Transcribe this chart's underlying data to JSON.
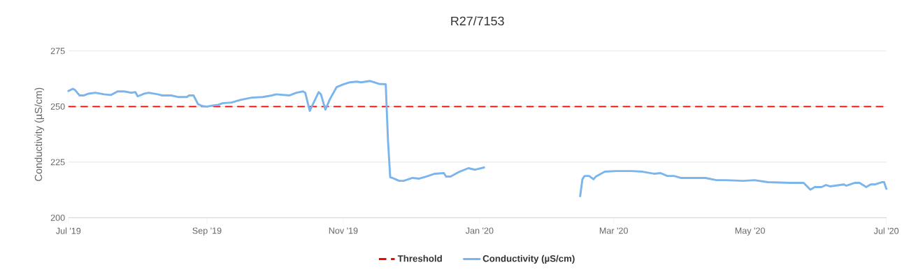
{
  "chart_data": {
    "type": "line",
    "title": "R27/7153",
    "ylabel": "Conductivity (µS/cm)",
    "xlim": [
      "2019-07-01",
      "2020-07-01"
    ],
    "xticks": [
      {
        "value": "2019-07-01",
        "label": "Jul '19"
      },
      {
        "value": "2019-09-01",
        "label": "Sep '19"
      },
      {
        "value": "2019-11-01",
        "label": "Nov '19"
      },
      {
        "value": "2020-01-01",
        "label": "Jan '20"
      },
      {
        "value": "2020-03-01",
        "label": "Mar '20"
      },
      {
        "value": "2020-05-01",
        "label": "May '20"
      },
      {
        "value": "2020-07-01",
        "label": "Jul '20"
      }
    ],
    "ylim": [
      200,
      275
    ],
    "yticks": [
      200,
      225,
      250,
      275
    ],
    "grid": "y",
    "legend": "bottom",
    "marker": "none",
    "ref_lines": [
      {
        "axis": "y",
        "value": 250,
        "label": "Threshold",
        "color": "#ff0000",
        "line_style": "dashed"
      }
    ],
    "series": [
      {
        "name": "Conductivity (µS/cm)",
        "color": "#7cb5ec",
        "line_style": "solid",
        "x": [
          "2019-07-01",
          "2019-07-03",
          "2019-07-04",
          "2019-07-06",
          "2019-07-08",
          "2019-07-10",
          "2019-07-13",
          "2019-07-17",
          "2019-07-20",
          "2019-07-23",
          "2019-07-26",
          "2019-07-29",
          "2019-07-31",
          "2019-08-01",
          "2019-08-04",
          "2019-08-06",
          "2019-08-10",
          "2019-08-12",
          "2019-08-16",
          "2019-08-19",
          "2019-08-23",
          "2019-08-24",
          "2019-08-26",
          "2019-08-28",
          "2019-08-30",
          "2019-09-01",
          "2019-09-04",
          "2019-09-06",
          "2019-09-08",
          "2019-09-12",
          "2019-09-16",
          "2019-09-21",
          "2019-09-26",
          "2019-09-30",
          "2019-10-02",
          "2019-10-08",
          "2019-10-11",
          "2019-10-14",
          "2019-10-15",
          "2019-10-17",
          "2019-10-21",
          "2019-10-22",
          "2019-10-24",
          "2019-10-26",
          "2019-10-29",
          "2019-11-01",
          "2019-11-04",
          "2019-11-07",
          "2019-11-09",
          "2019-11-13",
          "2019-11-17",
          "2019-11-20",
          "2019-11-21",
          "2019-11-22",
          "2019-11-23",
          "2019-11-26",
          "2019-11-28",
          "2019-12-02",
          "2019-12-05",
          "2019-12-08",
          "2019-12-12",
          "2019-12-16",
          "2019-12-17",
          "2019-12-19",
          "2019-12-23",
          "2019-12-27",
          "2019-12-30",
          "2020-01-03",
          "2020-01-20",
          "2020-02-15",
          "2020-02-16",
          "2020-02-17",
          "2020-02-19",
          "2020-02-21",
          "2020-02-22",
          "2020-02-26",
          "2020-03-02",
          "2020-03-09",
          "2020-03-14",
          "2020-03-19",
          "2020-03-22",
          "2020-03-25",
          "2020-03-28",
          "2020-03-31",
          "2020-04-11",
          "2020-04-16",
          "2020-04-20",
          "2020-04-28",
          "2020-05-03",
          "2020-05-09",
          "2020-05-19",
          "2020-05-25",
          "2020-05-28",
          "2020-05-30",
          "2020-06-02",
          "2020-06-04",
          "2020-06-06",
          "2020-06-12",
          "2020-06-13",
          "2020-06-17",
          "2020-06-19",
          "2020-06-22",
          "2020-06-24",
          "2020-06-26",
          "2020-06-29",
          "2020-06-30",
          "2020-07-01"
        ],
        "values": [
          257,
          258,
          257.4,
          255,
          255,
          255.8,
          256.2,
          255.5,
          255.2,
          256.8,
          256.8,
          256.2,
          256.5,
          254.6,
          255.8,
          256.2,
          255.5,
          255,
          255,
          254.3,
          254.3,
          255,
          255,
          251.1,
          250.2,
          250,
          250.5,
          250.8,
          251.5,
          251.8,
          253,
          254,
          254.3,
          255,
          255.5,
          255,
          256.2,
          256.8,
          256.2,
          248,
          256.5,
          255.5,
          248.6,
          253.3,
          258.7,
          260,
          260.9,
          261.2,
          260.9,
          261.5,
          260.2,
          260,
          235,
          218.2,
          217.9,
          216.6,
          216.6,
          217.9,
          217.6,
          218.5,
          219.8,
          220.1,
          218.5,
          218.5,
          220.7,
          222.3,
          221.6,
          222.6,
          null,
          209.7,
          217.3,
          218.8,
          218.8,
          217.3,
          218.5,
          220.7,
          221,
          221,
          220.7,
          219.8,
          220.1,
          218.8,
          218.8,
          217.9,
          217.9,
          216.9,
          216.9,
          216.6,
          216.9,
          216,
          215.7,
          215.7,
          212.6,
          213.8,
          213.8,
          214.7,
          214.1,
          215,
          214.4,
          215.7,
          215.7,
          213.8,
          215,
          215,
          216,
          216,
          213
        ]
      }
    ]
  }
}
